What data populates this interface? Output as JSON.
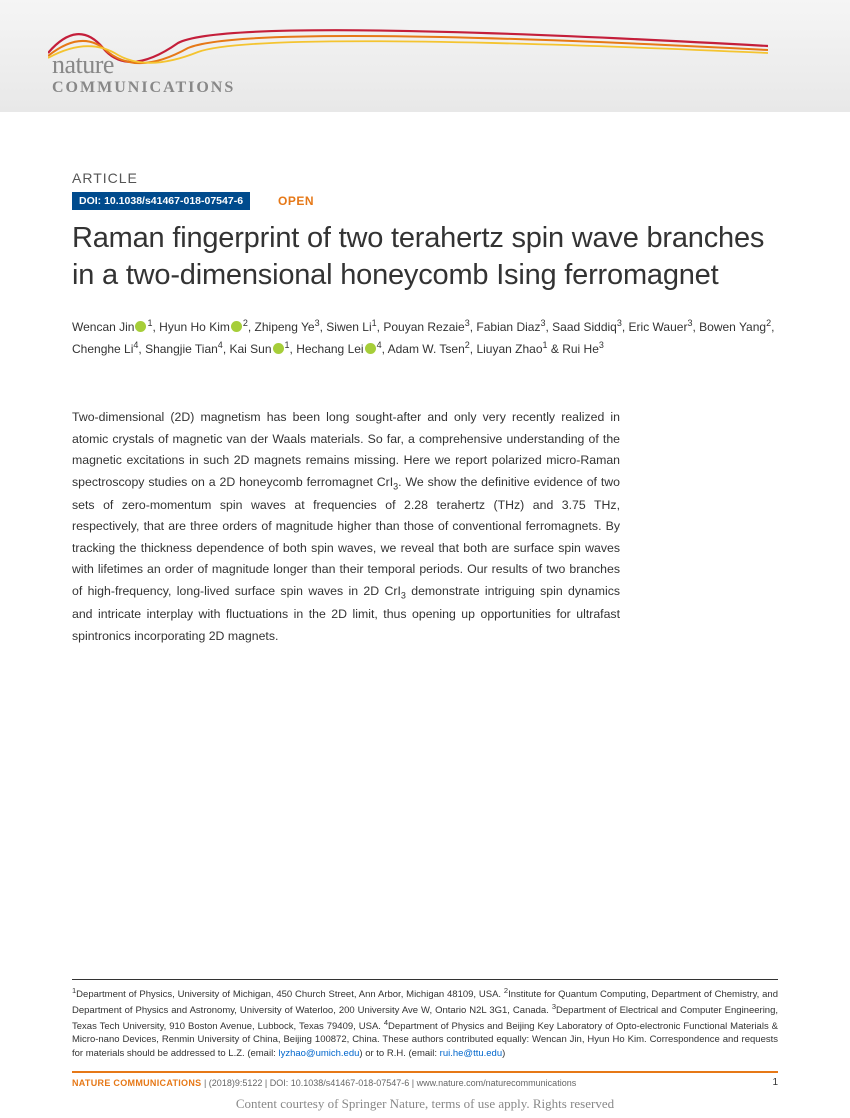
{
  "banner": {
    "logo_top": "nature",
    "logo_bottom": "COMMUNICATIONS",
    "wave_colors": [
      "#c41e3a",
      "#e67817",
      "#f4c430"
    ],
    "bg_gradient": [
      "#f5f5f5",
      "#e8e8e8"
    ]
  },
  "article": {
    "kicker": "ARTICLE",
    "doi": "DOI: 10.1038/s41467-018-07547-6",
    "open_label": "OPEN",
    "title": "Raman fingerprint of two terahertz spin wave branches in a two-dimensional honeycomb Ising ferromagnet",
    "authors_html": "Wencan Jin<span class='orcid'></span><sup>1</sup>, Hyun Ho Kim<span class='orcid'></span><sup>2</sup>, Zhipeng Ye<sup>3</sup>, Siwen Li<sup>1</sup>, Pouyan Rezaie<sup>3</sup>, Fabian Diaz<sup>3</sup>, Saad Siddiq<sup>3</sup>, Eric Wauer<sup>3</sup>, Bowen Yang<sup>2</sup>, Chenghe Li<sup>4</sup>, Shangjie Tian<sup>4</sup>, Kai Sun<span class='orcid'></span><sup>1</sup>, Hechang Lei<span class='orcid'></span><sup>4</sup>, Adam W. Tsen<sup>2</sup>, Liuyan Zhao<sup>1</sup> & Rui He<sup>3</sup>",
    "abstract_html": "Two-dimensional (2D) magnetism has been long sought-after and only very recently realized in atomic crystals of magnetic van der Waals materials. So far, a comprehensive understanding of the magnetic excitations in such 2D magnets remains missing. Here we report polarized micro-Raman spectroscopy studies on a 2D honeycomb ferromagnet CrI<sub>3</sub>. We show the definitive evidence of two sets of zero-momentum spin waves at frequencies of 2.28 terahertz (THz) and 3.75 THz, respectively, that are three orders of magnitude higher than those of conventional ferromagnets. By tracking the thickness dependence of both spin waves, we reveal that both are surface spin waves with lifetimes an order of magnitude longer than their temporal periods. Our results of two branches of high-frequency, long-lived surface spin waves in 2D CrI<sub>3</sub> demonstrate intriguing spin dynamics and intricate interplay with fluctuations in the 2D limit, thus opening up opportunities for ultrafast spintronics incorporating 2D magnets."
  },
  "footer": {
    "affiliations_html": "<sup>1</sup>Department of Physics, University of Michigan, 450 Church Street, Ann Arbor, Michigan 48109, USA. <sup>2</sup>Institute for Quantum Computing, Department of Chemistry, and Department of Physics and Astronomy, University of Waterloo, 200 University Ave W, Ontario N2L 3G1, Canada. <sup>3</sup>Department of Electrical and Computer Engineering, Texas Tech University, 910 Boston Avenue, Lubbock, Texas 79409, USA. <sup>4</sup>Department of Physics and Beijing Key Laboratory of Opto-electronic Functional Materials & Micro-nano Devices, Renmin University of China, Beijing 100872, China. These authors contributed equally: Wencan Jin, Hyun Ho Kim. Correspondence and requests for materials should be addressed to L.Z. (email: <a class='email-link' href='#' data-interactable='true' data-name='email-link-lz'>lyzhao@umich.edu</a>) or to R.H. (email: <a class='email-link' href='#' data-interactable='true' data-name='email-link-rh'>rui.he@ttu.edu</a>)",
    "journal_label": "NATURE COMMUNICATIONS",
    "citation": " | (2018)9:5122 | DOI: 10.1038/s41467-018-07547-6 | www.nature.com/naturecommunications",
    "page": "1",
    "courtesy": "Content courtesy of Springer Nature, terms of use apply. Rights reserved"
  },
  "colors": {
    "accent_orange": "#e67817",
    "doi_blue": "#004b8d",
    "orcid_green": "#a6ce39",
    "link_blue": "#0066cc",
    "text": "#333333",
    "muted": "#888888"
  }
}
